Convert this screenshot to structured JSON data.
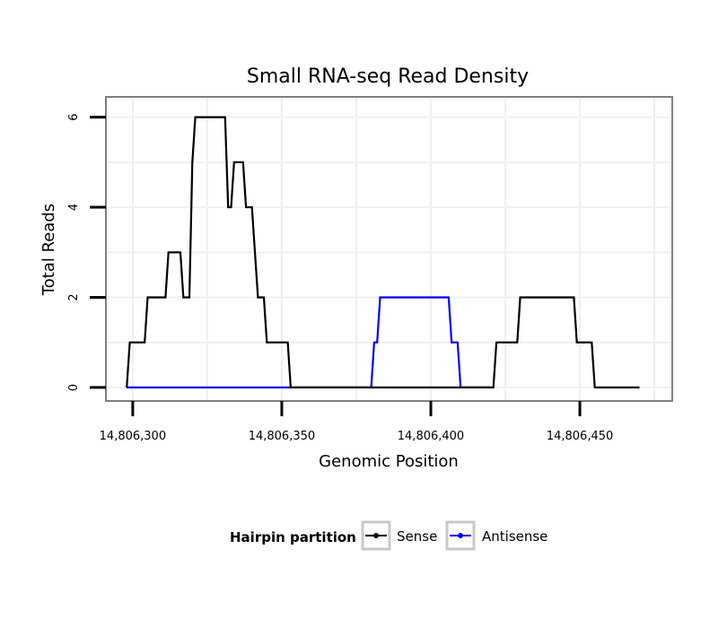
{
  "chart_data": {
    "type": "line",
    "title": "Small RNA-seq Read Density",
    "xlabel": "Genomic Position",
    "ylabel": "Total Reads",
    "xlim": [
      14806291,
      14806481
    ],
    "ylim": [
      -0.3,
      6.45
    ],
    "x_ticks": [
      14806300,
      14806350,
      14806400,
      14806450
    ],
    "x_tick_labels": [
      "14,806,300",
      "14,806,350",
      "14,806,400",
      "14,806,450"
    ],
    "y_ticks": [
      0,
      2,
      4,
      6
    ],
    "y_tick_labels": [
      "0",
      "2",
      "4",
      "6"
    ],
    "grid": true,
    "legend": {
      "title": "Hairpin partition",
      "position": "bottom",
      "entries": [
        "Sense",
        "Antisense"
      ]
    },
    "series": [
      {
        "name": "Sense",
        "color": "#000000",
        "points": [
          [
            14806298,
            0
          ],
          [
            14806299,
            1
          ],
          [
            14806304,
            1
          ],
          [
            14806305,
            2
          ],
          [
            14806311,
            2
          ],
          [
            14806312,
            3
          ],
          [
            14806316,
            3
          ],
          [
            14806317,
            2
          ],
          [
            14806319,
            2
          ],
          [
            14806320,
            5
          ],
          [
            14806321,
            6
          ],
          [
            14806331,
            6
          ],
          [
            14806332,
            4
          ],
          [
            14806333,
            4
          ],
          [
            14806334,
            5
          ],
          [
            14806337,
            5
          ],
          [
            14806338,
            4
          ],
          [
            14806340,
            4
          ],
          [
            14806342,
            2
          ],
          [
            14806344,
            2
          ],
          [
            14806345,
            1
          ],
          [
            14806352,
            1
          ],
          [
            14806353,
            0
          ],
          [
            14806421,
            0
          ],
          [
            14806422,
            1
          ],
          [
            14806429,
            1
          ],
          [
            14806430,
            2
          ],
          [
            14806448,
            2
          ],
          [
            14806449,
            1
          ],
          [
            14806454,
            1
          ],
          [
            14806455,
            0
          ],
          [
            14806470,
            0
          ]
        ]
      },
      {
        "name": "Antisense",
        "color": "#0000ff",
        "points": [
          [
            14806298,
            0
          ],
          [
            14806380,
            0
          ],
          [
            14806381,
            1
          ],
          [
            14806382,
            1
          ],
          [
            14806383,
            2
          ],
          [
            14806406,
            2
          ],
          [
            14806407,
            1
          ],
          [
            14806409,
            1
          ],
          [
            14806410,
            0
          ],
          [
            14806420,
            0
          ]
        ]
      }
    ]
  }
}
